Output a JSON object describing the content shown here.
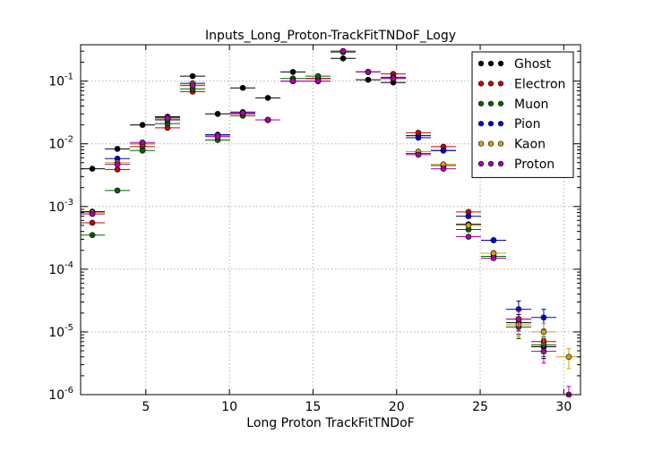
{
  "chart_data": {
    "type": "scatter",
    "title": "Inputs_Long_Proton-TrackFitTNDoF_Logy",
    "xlabel": "Long Proton TrackFitTNDoF",
    "ylabel": "",
    "xlim": [
      1.1,
      31.0
    ],
    "ylim": [
      1e-06,
      0.38
    ],
    "yscale": "log",
    "grid": true,
    "legend_position": "top-right",
    "x_tick_labels": [
      "5",
      "10",
      "15",
      "20",
      "25",
      "30"
    ],
    "y_tick_labels": [
      {
        "base": "10",
        "exp": "-6"
      },
      {
        "base": "10",
        "exp": "-5"
      },
      {
        "base": "10",
        "exp": "-4"
      },
      {
        "base": "10",
        "exp": "-3"
      },
      {
        "base": "10",
        "exp": "-2"
      },
      {
        "base": "10",
        "exp": "-1"
      }
    ],
    "series": [
      {
        "name": "Ghost",
        "color": "#000000",
        "points": [
          [
            1.8,
            0.004
          ],
          [
            3.3,
            0.0083
          ],
          [
            4.8,
            0.02
          ],
          [
            6.3,
            0.027
          ],
          [
            7.8,
            0.12
          ],
          [
            9.3,
            0.03
          ],
          [
            10.8,
            0.078
          ],
          [
            12.3,
            0.054
          ],
          [
            13.8,
            0.14
          ],
          [
            15.3,
            0.11
          ],
          [
            16.8,
            0.23
          ],
          [
            18.3,
            0.105
          ],
          [
            19.8,
            0.095
          ],
          [
            21.3,
            0.0135
          ],
          [
            22.8,
            0.0078
          ],
          [
            24.3,
            0.00052
          ],
          [
            25.8,
            0.00018
          ],
          [
            27.3,
            1.4e-05
          ],
          [
            28.8,
            5.8e-06
          ]
        ]
      },
      {
        "name": "Electron",
        "color": "#cc0000",
        "points": [
          [
            1.8,
            0.00055
          ],
          [
            3.3,
            0.0039
          ],
          [
            4.8,
            0.009
          ],
          [
            6.3,
            0.018
          ],
          [
            7.8,
            0.068
          ],
          [
            9.3,
            0.0135
          ],
          [
            10.8,
            0.03
          ],
          [
            12.3,
            0.024
          ],
          [
            13.8,
            0.1
          ],
          [
            15.3,
            0.11
          ],
          [
            16.8,
            0.3
          ],
          [
            18.3,
            0.14
          ],
          [
            19.8,
            0.13
          ],
          [
            21.3,
            0.015
          ],
          [
            22.8,
            0.009
          ],
          [
            24.3,
            0.00082
          ],
          [
            25.8,
            0.00029
          ],
          [
            27.3,
            1.6e-05
          ],
          [
            28.8,
            7e-06
          ]
        ]
      },
      {
        "name": "Muon",
        "color": "#006400",
        "points": [
          [
            1.8,
            0.00035
          ],
          [
            3.3,
            0.0018
          ],
          [
            4.8,
            0.0078
          ],
          [
            6.3,
            0.021
          ],
          [
            7.8,
            0.075
          ],
          [
            9.3,
            0.0115
          ],
          [
            10.8,
            0.028
          ],
          [
            12.3,
            0.024
          ],
          [
            13.8,
            0.11
          ],
          [
            15.3,
            0.12
          ],
          [
            16.8,
            0.29
          ],
          [
            18.3,
            0.14
          ],
          [
            19.8,
            0.11
          ],
          [
            21.3,
            0.007
          ],
          [
            22.8,
            0.0045
          ],
          [
            24.3,
            0.00043
          ],
          [
            25.8,
            0.00016
          ],
          [
            27.3,
            1.2e-05
          ],
          [
            28.8,
            6.2e-06
          ]
        ]
      },
      {
        "name": "Pion",
        "color": "#0000cc",
        "points": [
          [
            1.8,
            0.00083
          ],
          [
            3.3,
            0.0058
          ],
          [
            4.8,
            0.01
          ],
          [
            6.3,
            0.024
          ],
          [
            7.8,
            0.092
          ],
          [
            9.3,
            0.014
          ],
          [
            10.8,
            0.032
          ],
          [
            12.3,
            0.024
          ],
          [
            13.8,
            0.1
          ],
          [
            15.3,
            0.1
          ],
          [
            16.8,
            0.3
          ],
          [
            18.3,
            0.14
          ],
          [
            19.8,
            0.115
          ],
          [
            21.3,
            0.0125
          ],
          [
            22.8,
            0.0078
          ],
          [
            24.3,
            0.0007
          ],
          [
            25.8,
            0.00029
          ],
          [
            27.3,
            2.3e-05
          ],
          [
            28.8,
            1.7e-05
          ]
        ]
      },
      {
        "name": "Kaon",
        "color": "#d4a017",
        "points": [
          [
            1.8,
            0.0008
          ],
          [
            3.3,
            0.005
          ],
          [
            4.8,
            0.01
          ],
          [
            6.3,
            0.025
          ],
          [
            7.8,
            0.09
          ],
          [
            9.3,
            0.0135
          ],
          [
            10.8,
            0.031
          ],
          [
            12.3,
            0.024
          ],
          [
            13.8,
            0.1
          ],
          [
            15.3,
            0.1
          ],
          [
            16.8,
            0.3
          ],
          [
            18.3,
            0.14
          ],
          [
            19.8,
            0.11
          ],
          [
            21.3,
            0.0075
          ],
          [
            22.8,
            0.0047
          ],
          [
            24.3,
            0.0005
          ],
          [
            25.8,
            0.00018
          ],
          [
            27.3,
            1.3e-05
          ],
          [
            28.8,
            1e-05
          ],
          [
            30.3,
            4e-06
          ]
        ]
      },
      {
        "name": "Proton",
        "color": "#aa00aa",
        "points": [
          [
            1.8,
            0.00076
          ],
          [
            3.3,
            0.0047
          ],
          [
            4.8,
            0.0105
          ],
          [
            6.3,
            0.026
          ],
          [
            7.8,
            0.085
          ],
          [
            9.3,
            0.013
          ],
          [
            10.8,
            0.031
          ],
          [
            12.3,
            0.024
          ],
          [
            13.8,
            0.1
          ],
          [
            15.3,
            0.1
          ],
          [
            16.8,
            0.3
          ],
          [
            18.3,
            0.14
          ],
          [
            19.8,
            0.11
          ],
          [
            21.3,
            0.0067
          ],
          [
            22.8,
            0.004
          ],
          [
            24.3,
            0.00033
          ],
          [
            25.8,
            0.00015
          ],
          [
            27.3,
            1.6e-05
          ],
          [
            28.8,
            4.9e-06
          ],
          [
            30.3,
            1e-06
          ]
        ]
      }
    ]
  }
}
